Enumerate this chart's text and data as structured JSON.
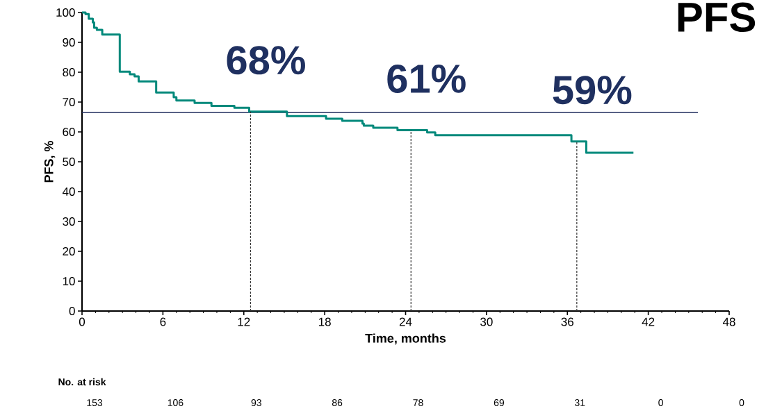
{
  "chart_data": {
    "type": "step",
    "title": "PFS",
    "xlabel": "Time, months",
    "ylabel": "PFS, %",
    "x": [
      0,
      0.26,
      0.5,
      0.8,
      0.9,
      1.1,
      1.5,
      2.6,
      2.8,
      3.55,
      3.9,
      4.2,
      5.5,
      6.8,
      7.0,
      8.35,
      9.6,
      11.3,
      12.4,
      15.2,
      18.1,
      19.3,
      20.8,
      20.9,
      21.6,
      23.4,
      25.6,
      26.2,
      36.3,
      37.4,
      40.9
    ],
    "series": [
      {
        "color": "#00897b",
        "values": [
          100,
          99.5,
          97.9,
          96.7,
          94.9,
          94.2,
          92.6,
          92.6,
          80.2,
          79.3,
          78.6,
          76.9,
          73.2,
          71.6,
          70.5,
          69.7,
          68.7,
          68.1,
          66.8,
          65.3,
          64.4,
          63.7,
          62.8,
          62.1,
          61.4,
          60.6,
          59.8,
          58.9,
          56.8,
          53.0,
          53.0
        ]
      }
    ],
    "xlim": [
      0,
      48
    ],
    "xticks": [
      0,
      6,
      12,
      18,
      24,
      30,
      36,
      42,
      48
    ],
    "ylim": [
      0,
      100
    ],
    "yticks": [
      0,
      10,
      20,
      30,
      40,
      50,
      60,
      70,
      80,
      90,
      100
    ],
    "ref_lines": [
      {
        "axis": "y",
        "value": 66.5,
        "color": "#1f2d5c"
      }
    ],
    "annotations": [
      {
        "text": "68%",
        "x": 12.5,
        "y": 66.8
      },
      {
        "text": "61%",
        "x": 24.4,
        "y": 60.6
      },
      {
        "text": "59%",
        "x": 36.7,
        "y": 56.8
      },
      "No. at risk",
      "153",
      "106",
      "93",
      "86",
      "78",
      "69",
      "31",
      "0",
      "0"
    ],
    "grid": false
  }
}
